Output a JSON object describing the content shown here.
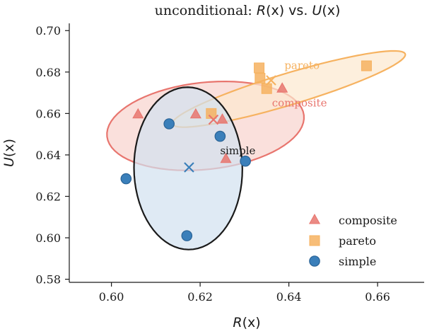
{
  "chart_data": {
    "type": "scatter",
    "title": "unconditional: R(x) vs. U(x)",
    "title_parts": {
      "prefix": "unconditional: ",
      "r": "R",
      "mid": "(x) vs. ",
      "u": "U",
      "suffix": "(x)"
    },
    "xlabel": {
      "var": "R",
      "arg": "(x)"
    },
    "ylabel": {
      "var": "U",
      "arg": "(x)"
    },
    "xlim": [
      0.5905,
      0.6705
    ],
    "ylim": [
      0.5785,
      0.7035
    ],
    "xticks": [
      0.6,
      0.62,
      0.64,
      0.66
    ],
    "xtick_labels": [
      "0.60",
      "0.62",
      "0.64",
      "0.66"
    ],
    "yticks": [
      0.58,
      0.6,
      0.62,
      0.64,
      0.66,
      0.68,
      0.7
    ],
    "ytick_labels": [
      "0.58",
      "0.60",
      "0.62",
      "0.64",
      "0.66",
      "0.68",
      "0.70"
    ],
    "grid": false,
    "legend_position": "lower-right",
    "series": [
      {
        "name": "composite",
        "marker": "triangle",
        "color": "#e8756e",
        "points": [
          [
            0.606,
            0.6595
          ],
          [
            0.619,
            0.6595
          ],
          [
            0.625,
            0.657
          ],
          [
            0.6258,
            0.638
          ],
          [
            0.6385,
            0.672
          ]
        ],
        "mean": [
          0.623,
          0.657
        ],
        "ellipse_label": "composite",
        "ellipse": {
          "cx": 0.6212,
          "cy": 0.654,
          "rx_dir": [
            0.022,
            0.007
          ],
          "ry_dir": [
            -0.0031,
            0.0203
          ],
          "fill": "#f8d3cd",
          "edge": "#e8756e"
        }
      },
      {
        "name": "pareto",
        "marker": "square",
        "color": "#f6b260",
        "points": [
          [
            0.6225,
            0.66
          ],
          [
            0.6333,
            0.682
          ],
          [
            0.6335,
            0.677
          ],
          [
            0.635,
            0.672
          ],
          [
            0.6575,
            0.683
          ]
        ],
        "mean": [
          0.636,
          0.676
        ],
        "ellipse_label": "pareto",
        "ellipse": {
          "cx": 0.64,
          "cy": 0.6718,
          "rx_dir": [
            0.0262,
            0.0171
          ],
          "ry_dir": [
            -0.0018,
            0.0068
          ],
          "fill": "#fce8cf",
          "edge": "#f6b260"
        }
      },
      {
        "name": "simple",
        "marker": "circle",
        "color": "#3a7fba",
        "points": [
          [
            0.6033,
            0.6285
          ],
          [
            0.613,
            0.655
          ],
          [
            0.617,
            0.601
          ],
          [
            0.6245,
            0.649
          ],
          [
            0.6302,
            0.637
          ]
        ],
        "mean": [
          0.6175,
          0.634
        ],
        "ellipse_label": "simple",
        "ellipse": {
          "cx": 0.6173,
          "cy": 0.6335,
          "rx_dir": [
            0.0051,
            0.0354
          ],
          "ry_dir": [
            0.0111,
            -0.0168
          ],
          "fill": "#d2e1ef",
          "edge": "#1a1a1a"
        }
      }
    ],
    "ellipse_text_positions": {
      "pareto": [
        0.639,
        0.6815
      ],
      "composite": [
        0.6362,
        0.6633
      ],
      "simple": [
        0.6245,
        0.6403
      ]
    },
    "legend": [
      {
        "label": "composite",
        "marker": "triangle",
        "color": "#e8756e"
      },
      {
        "label": "pareto",
        "marker": "square",
        "color": "#f6b260"
      },
      {
        "label": "simple",
        "marker": "circle",
        "color": "#3a7fba"
      }
    ]
  }
}
